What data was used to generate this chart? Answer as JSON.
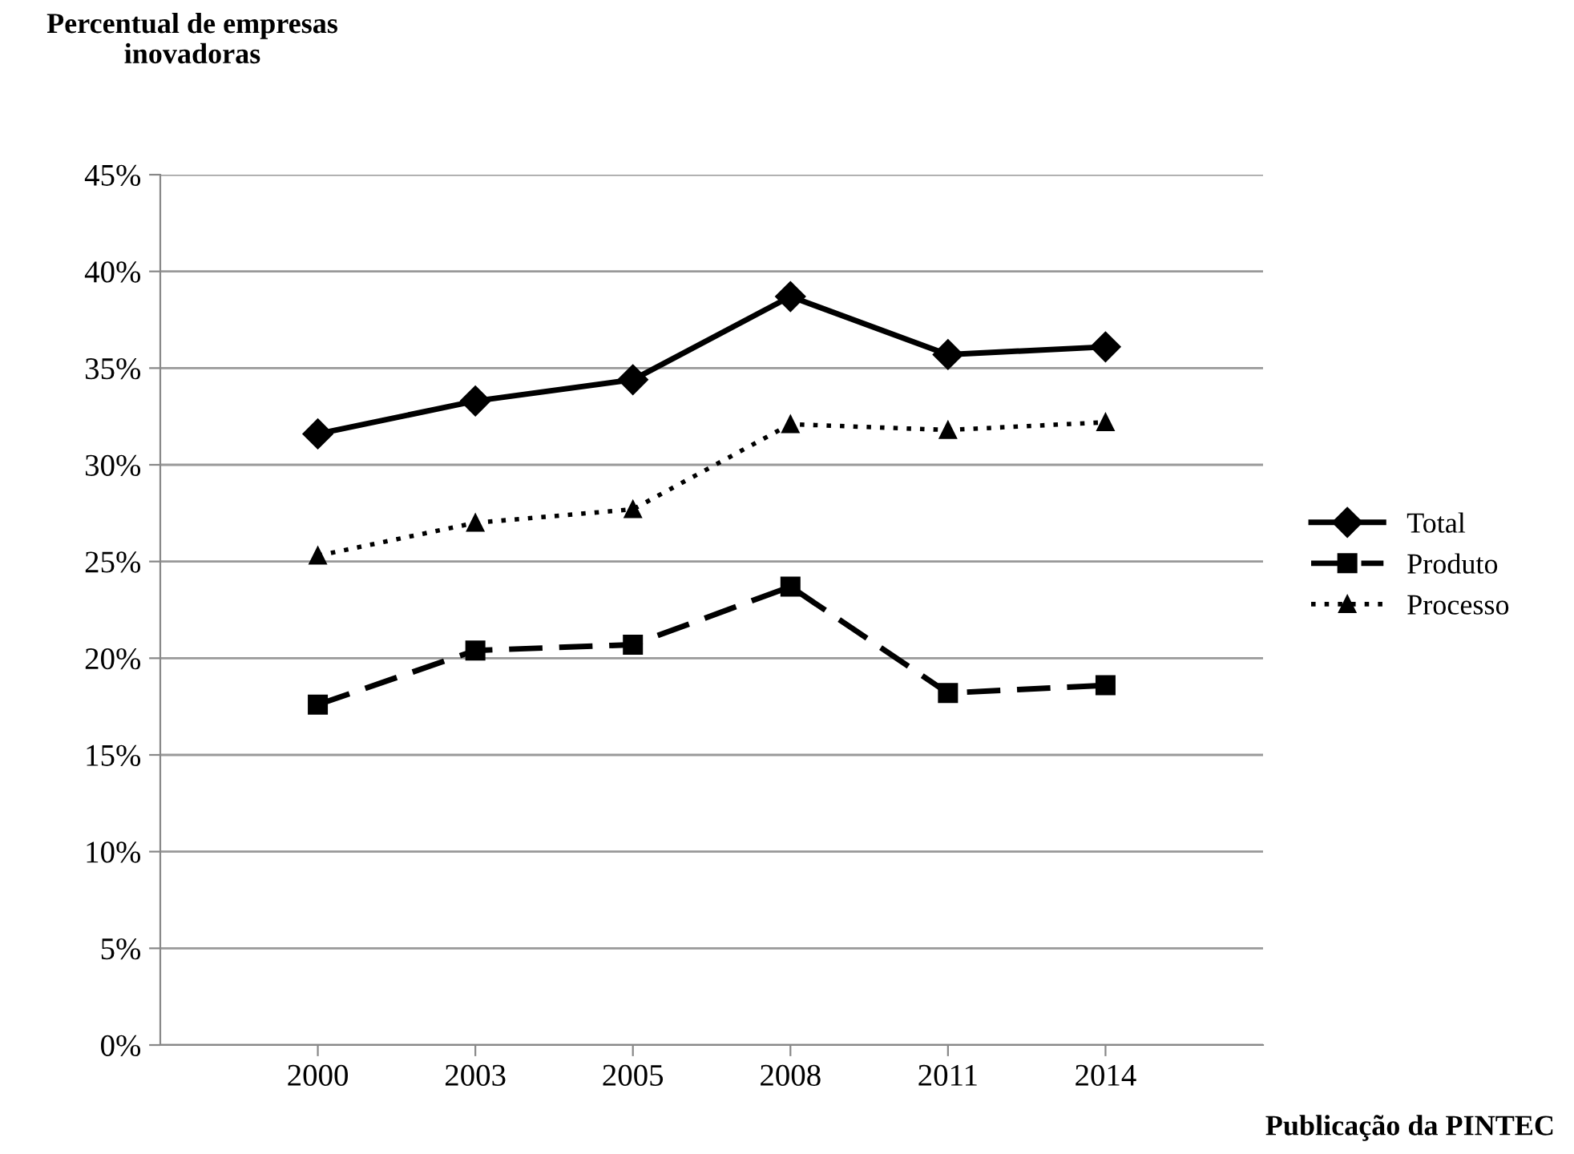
{
  "chart_data": {
    "type": "line",
    "xlabel": "Publicação da PINTEC",
    "ylabel": "Percentual de empresas\ninovadoras",
    "categories": [
      "2000",
      "2003",
      "2005",
      "2008",
      "2011",
      "2014"
    ],
    "series": [
      {
        "name": "Total",
        "color": "#000000",
        "marker": "diamond",
        "line_style": "solid",
        "values": [
          31.6,
          33.3,
          34.4,
          38.7,
          35.7,
          36.1
        ]
      },
      {
        "name": "Produto",
        "color": "#000000",
        "marker": "square",
        "line_style": "dashed",
        "values": [
          17.6,
          20.4,
          20.7,
          23.7,
          18.2,
          18.6
        ]
      },
      {
        "name": "Processo",
        "color": "#000000",
        "marker": "triangle",
        "line_style": "dotted",
        "values": [
          25.3,
          27.0,
          27.7,
          32.1,
          31.8,
          32.2
        ]
      }
    ],
    "ylim": [
      0,
      45
    ],
    "yticks": [
      {
        "value": 0,
        "label": "0%"
      },
      {
        "value": 5,
        "label": "5%"
      },
      {
        "value": 10,
        "label": "10%"
      },
      {
        "value": 15,
        "label": "15%"
      },
      {
        "value": 20,
        "label": "20%"
      },
      {
        "value": 25,
        "label": "25%"
      },
      {
        "value": 30,
        "label": "30%"
      },
      {
        "value": 35,
        "label": "35%"
      },
      {
        "value": 40,
        "label": "40%"
      },
      {
        "value": 45,
        "label": "45%"
      }
    ],
    "grid": "y",
    "legend": "right"
  }
}
